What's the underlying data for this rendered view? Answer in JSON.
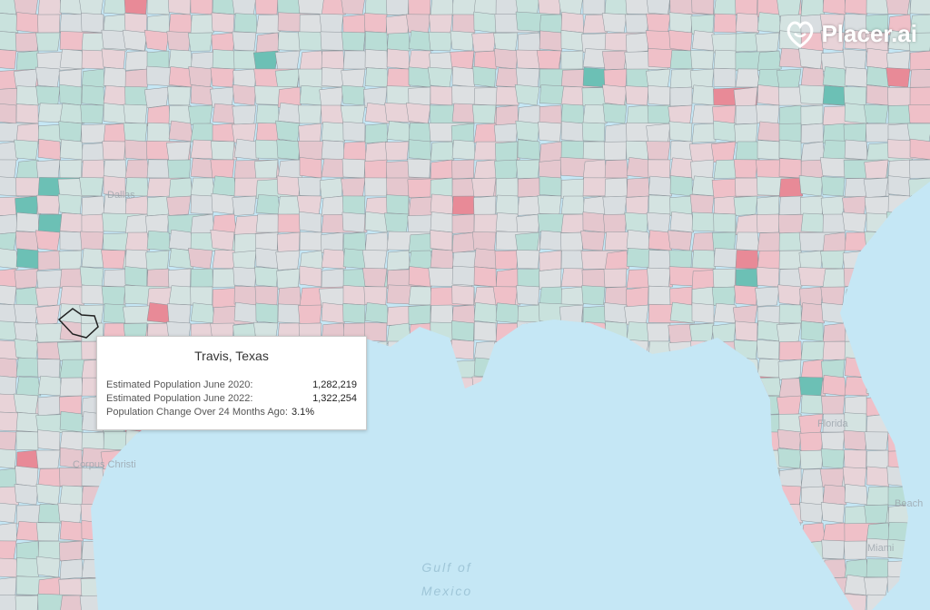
{
  "brand": {
    "name": "Placer.ai"
  },
  "map_labels": {
    "gulf_line1": "Gulf of",
    "gulf_line2": "Mexico",
    "city_dallas": "Dallas",
    "city_corpus": "Corpus Christi",
    "state_florida": "Florida",
    "city_miami": "Miami",
    "city_beach": "Beach"
  },
  "tooltip": {
    "title": "Travis, Texas",
    "rows": [
      {
        "label": "Estimated Population June 2020:",
        "value": "1,282,219"
      },
      {
        "label": "Estimated Population June 2022:",
        "value": "1,322,254"
      },
      {
        "label": "Population Change Over 24 Months Ago:",
        "value": "3.1%"
      }
    ]
  }
}
